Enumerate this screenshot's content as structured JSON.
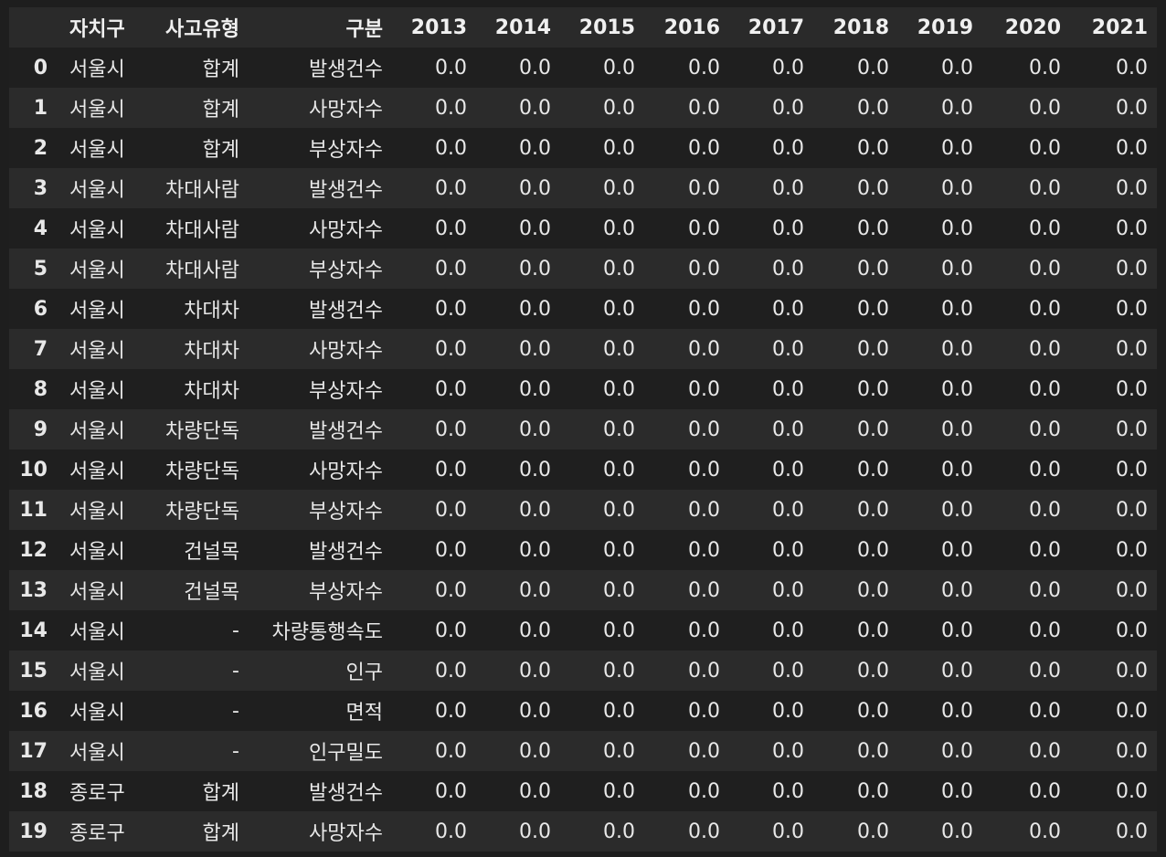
{
  "table": {
    "headers": [
      "",
      "자치구",
      "사고유형",
      "구분",
      "2013",
      "2014",
      "2015",
      "2016",
      "2017",
      "2018",
      "2019",
      "2020",
      "2021"
    ],
    "rows": [
      [
        "0",
        "서울시",
        "합계",
        "발생건수",
        "0.0",
        "0.0",
        "0.0",
        "0.0",
        "0.0",
        "0.0",
        "0.0",
        "0.0",
        "0.0"
      ],
      [
        "1",
        "서울시",
        "합계",
        "사망자수",
        "0.0",
        "0.0",
        "0.0",
        "0.0",
        "0.0",
        "0.0",
        "0.0",
        "0.0",
        "0.0"
      ],
      [
        "2",
        "서울시",
        "합계",
        "부상자수",
        "0.0",
        "0.0",
        "0.0",
        "0.0",
        "0.0",
        "0.0",
        "0.0",
        "0.0",
        "0.0"
      ],
      [
        "3",
        "서울시",
        "차대사람",
        "발생건수",
        "0.0",
        "0.0",
        "0.0",
        "0.0",
        "0.0",
        "0.0",
        "0.0",
        "0.0",
        "0.0"
      ],
      [
        "4",
        "서울시",
        "차대사람",
        "사망자수",
        "0.0",
        "0.0",
        "0.0",
        "0.0",
        "0.0",
        "0.0",
        "0.0",
        "0.0",
        "0.0"
      ],
      [
        "5",
        "서울시",
        "차대사람",
        "부상자수",
        "0.0",
        "0.0",
        "0.0",
        "0.0",
        "0.0",
        "0.0",
        "0.0",
        "0.0",
        "0.0"
      ],
      [
        "6",
        "서울시",
        "차대차",
        "발생건수",
        "0.0",
        "0.0",
        "0.0",
        "0.0",
        "0.0",
        "0.0",
        "0.0",
        "0.0",
        "0.0"
      ],
      [
        "7",
        "서울시",
        "차대차",
        "사망자수",
        "0.0",
        "0.0",
        "0.0",
        "0.0",
        "0.0",
        "0.0",
        "0.0",
        "0.0",
        "0.0"
      ],
      [
        "8",
        "서울시",
        "차대차",
        "부상자수",
        "0.0",
        "0.0",
        "0.0",
        "0.0",
        "0.0",
        "0.0",
        "0.0",
        "0.0",
        "0.0"
      ],
      [
        "9",
        "서울시",
        "차량단독",
        "발생건수",
        "0.0",
        "0.0",
        "0.0",
        "0.0",
        "0.0",
        "0.0",
        "0.0",
        "0.0",
        "0.0"
      ],
      [
        "10",
        "서울시",
        "차량단독",
        "사망자수",
        "0.0",
        "0.0",
        "0.0",
        "0.0",
        "0.0",
        "0.0",
        "0.0",
        "0.0",
        "0.0"
      ],
      [
        "11",
        "서울시",
        "차량단독",
        "부상자수",
        "0.0",
        "0.0",
        "0.0",
        "0.0",
        "0.0",
        "0.0",
        "0.0",
        "0.0",
        "0.0"
      ],
      [
        "12",
        "서울시",
        "건널목",
        "발생건수",
        "0.0",
        "0.0",
        "0.0",
        "0.0",
        "0.0",
        "0.0",
        "0.0",
        "0.0",
        "0.0"
      ],
      [
        "13",
        "서울시",
        "건널목",
        "부상자수",
        "0.0",
        "0.0",
        "0.0",
        "0.0",
        "0.0",
        "0.0",
        "0.0",
        "0.0",
        "0.0"
      ],
      [
        "14",
        "서울시",
        "-",
        "차량통행속도",
        "0.0",
        "0.0",
        "0.0",
        "0.0",
        "0.0",
        "0.0",
        "0.0",
        "0.0",
        "0.0"
      ],
      [
        "15",
        "서울시",
        "-",
        "인구",
        "0.0",
        "0.0",
        "0.0",
        "0.0",
        "0.0",
        "0.0",
        "0.0",
        "0.0",
        "0.0"
      ],
      [
        "16",
        "서울시",
        "-",
        "면적",
        "0.0",
        "0.0",
        "0.0",
        "0.0",
        "0.0",
        "0.0",
        "0.0",
        "0.0",
        "0.0"
      ],
      [
        "17",
        "서울시",
        "-",
        "인구밀도",
        "0.0",
        "0.0",
        "0.0",
        "0.0",
        "0.0",
        "0.0",
        "0.0",
        "0.0",
        "0.0"
      ],
      [
        "18",
        "종로구",
        "합계",
        "발생건수",
        "0.0",
        "0.0",
        "0.0",
        "0.0",
        "0.0",
        "0.0",
        "0.0",
        "0.0",
        "0.0"
      ],
      [
        "19",
        "종로구",
        "합계",
        "사망자수",
        "0.0",
        "0.0",
        "0.0",
        "0.0",
        "0.0",
        "0.0",
        "0.0",
        "0.0",
        "0.0"
      ]
    ]
  }
}
